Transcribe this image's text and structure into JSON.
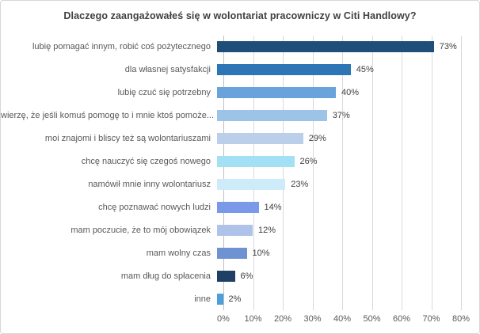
{
  "title": "Dlaczego zaangażowałeś się w wolontariat pracowniczy w Citi Handlowy?",
  "chart_data": {
    "type": "bar",
    "orientation": "horizontal",
    "title": "Dlaczego zaangażowałeś się w wolontariat pracowniczy w Citi Handlowy?",
    "categories": [
      "lubię pomagać innym, robić coś pożytecznego",
      "dla własnej satysfakcji",
      "lubię czuć się potrzebny",
      "wierzę, że jeśli komuś pomogę to i mnie ktoś pomoże...",
      "moi znajomi i bliscy też są wolontariuszami",
      "chcę nauczyć się czegoś nowego",
      "namówił mnie inny wolontariusz",
      "chcę poznawać nowych ludzi",
      "mam poczucie, że to mój obowiązek",
      "mam wolny czas",
      "mam dług do spłacenia",
      "inne"
    ],
    "values": [
      73,
      45,
      40,
      37,
      29,
      26,
      23,
      14,
      12,
      10,
      6,
      2
    ],
    "unit": "%",
    "bar_colors": [
      "#1F4E79",
      "#2E75B6",
      "#6AA3DC",
      "#9DC3E6",
      "#BCCFEA",
      "#A3E0F4",
      "#CDEBF8",
      "#7A99E8",
      "#AFC3EA",
      "#6E93D2",
      "#1F3F66",
      "#4BA0DB"
    ],
    "xlabel": "",
    "ylabel": "",
    "xlim": [
      0,
      80
    ],
    "x_ticks": [
      "0%",
      "10%",
      "20%",
      "30%",
      "40%",
      "50%",
      "60%",
      "70%",
      "80%"
    ],
    "grid": true,
    "legend": "none",
    "colors": {
      "background": "#FFFFFF",
      "border": "#D7D7D7",
      "title_text": "#404040",
      "category_text": "#595959",
      "value_text": "#404040",
      "gridline": "#D9D9D9",
      "axis_line": "#BFBFBF",
      "tick_text": "#595959"
    }
  }
}
